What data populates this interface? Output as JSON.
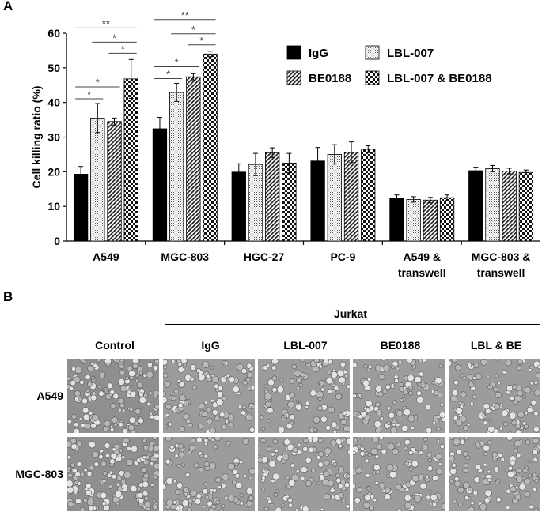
{
  "panel_a": {
    "letter": "A"
  },
  "panel_b": {
    "letter": "B",
    "group_label": "Jurkat",
    "columns": [
      "Control",
      "IgG",
      "LBL-007",
      "BE0188",
      "LBL & BE"
    ],
    "rows": [
      "A549",
      "MGC-803"
    ]
  },
  "chart_data": {
    "type": "bar",
    "title": "",
    "xlabel": "",
    "ylabel": "Cell killing ratio (%)",
    "ylim": [
      0,
      60
    ],
    "yticks": [
      0,
      10,
      20,
      30,
      40,
      50,
      60
    ],
    "categories": [
      [
        "A549"
      ],
      [
        "MGC-803"
      ],
      [
        "HGC-27"
      ],
      [
        "PC-9"
      ],
      [
        "A549 &",
        "transwell"
      ],
      [
        "MGC-803 &",
        "transwell"
      ]
    ],
    "legend_position": "top-right",
    "series": [
      {
        "name": "IgG",
        "pattern": "solid",
        "values": [
          19.3,
          32.4,
          19.9,
          23.1,
          12.3,
          20.3
        ],
        "errors": [
          2.2,
          3.3,
          2.4,
          3.9,
          1.0,
          1.0
        ]
      },
      {
        "name": "LBL-007",
        "pattern": "dots",
        "values": [
          35.5,
          42.9,
          22.1,
          25.0,
          12.0,
          20.9
        ],
        "errors": [
          4.2,
          2.6,
          3.2,
          2.8,
          0.8,
          0.9
        ]
      },
      {
        "name": "BE0188",
        "pattern": "hatch",
        "values": [
          34.5,
          47.4,
          25.5,
          25.6,
          11.8,
          20.2
        ],
        "errors": [
          1.0,
          0.9,
          1.4,
          3.0,
          0.8,
          0.8
        ]
      },
      {
        "name": "LBL-007 & BE0188",
        "pattern": "checker",
        "values": [
          46.8,
          54.0,
          22.5,
          26.5,
          12.5,
          19.8
        ],
        "errors": [
          5.6,
          0.8,
          2.8,
          1.0,
          0.8,
          0.7
        ]
      }
    ],
    "significance": [
      {
        "category": 0,
        "from": 0,
        "to": 1,
        "label": "*"
      },
      {
        "category": 0,
        "from": 0,
        "to": 2,
        "label": "*"
      },
      {
        "category": 0,
        "from": 0,
        "to": 3,
        "label": "**"
      },
      {
        "category": 0,
        "from": 1,
        "to": 3,
        "label": "*"
      },
      {
        "category": 0,
        "from": 2,
        "to": 3,
        "label": "*"
      },
      {
        "category": 1,
        "from": 0,
        "to": 1,
        "label": "*"
      },
      {
        "category": 1,
        "from": 0,
        "to": 2,
        "label": "*"
      },
      {
        "category": 1,
        "from": 0,
        "to": 3,
        "label": "**"
      },
      {
        "category": 1,
        "from": 1,
        "to": 3,
        "label": "*"
      },
      {
        "category": 1,
        "from": 2,
        "to": 3,
        "label": "*"
      }
    ]
  }
}
